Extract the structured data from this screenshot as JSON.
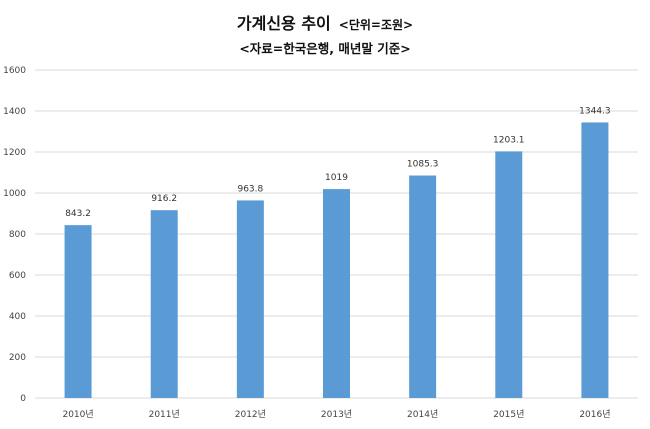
{
  "chart_data": {
    "type": "bar",
    "title": "가계신용 추이",
    "unit_note": "<단위=조원>",
    "subtitle": "<자료=한국은행, 매년말 기준>",
    "categories": [
      "2010년",
      "2011년",
      "2012년",
      "2013년",
      "2014년",
      "2015년",
      "2016년"
    ],
    "values": [
      843.2,
      916.2,
      963.8,
      1019,
      1085.3,
      1203.1,
      1344.3
    ],
    "data_labels": [
      "843.2",
      "916.2",
      "963.8",
      "1019",
      "1085.3",
      "1203.1",
      "1344.3"
    ],
    "ylim": [
      0,
      1600
    ],
    "yticks": [
      0,
      200,
      400,
      600,
      800,
      1000,
      1200,
      1400,
      1600
    ],
    "xlabel": "",
    "ylabel": "",
    "grid": true,
    "legend": "none",
    "bar_color": "#5b9bd5",
    "grid_color": "#d9d9d9"
  }
}
